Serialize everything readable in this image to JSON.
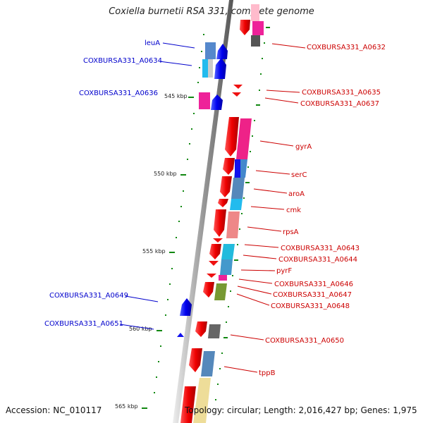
{
  "title": "Coxiella burnetii RSA 331, complete genome",
  "accession": "Accession: NC_010117",
  "topology": "Topology: circular; Length: 2,016,427 bp; Genes: 1,975",
  "kbp_marks": [
    "545 kbp",
    "550 kbp",
    "555 kbp",
    "560 kbp",
    "565 kbp"
  ],
  "labels_left": [
    "leuA",
    "COXBURSA331_A0634",
    "COXBURSA331_A0636",
    "COXBURSA331_A0649",
    "COXBURSA331_A0651"
  ],
  "labels_right": [
    "COXBURSA331_A0632",
    "COXBURSA331_A0635",
    "COXBURSA331_A0637",
    "gyrA",
    "serC",
    "aroA",
    "cmk",
    "rpsA",
    "COXBURSA331_A0643",
    "COXBURSA331_A0644",
    "pyrF",
    "COXBURSA331_A0646",
    "COXBURSA331_A0647",
    "COXBURSA331_A0648",
    "COXBURSA331_A0650",
    "tppB"
  ],
  "colors": {
    "reverse_strand": "#ee1111",
    "forward_strand": "#1111ee",
    "backbone": "#888888",
    "tick": "#118811",
    "label_left": "#0000cc",
    "label_right": "#cc0000"
  }
}
